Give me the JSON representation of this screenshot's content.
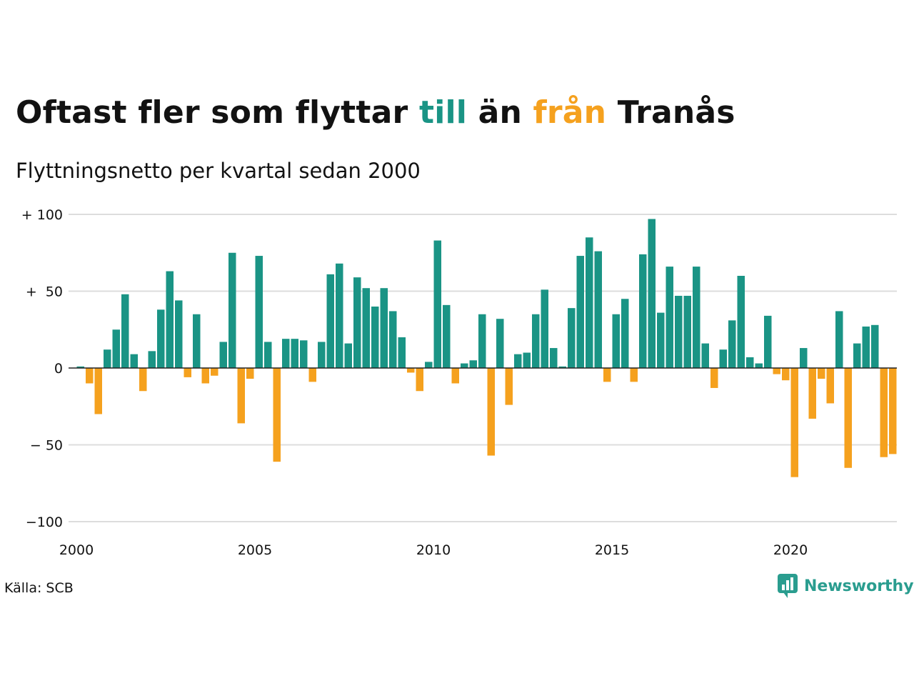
{
  "title": {
    "part1": "Oftast fler som flyttar ",
    "highlight1": "till",
    "part2": " än ",
    "highlight2": "från",
    "part3": " Tranås"
  },
  "subtitle": "Flyttningsnetto per kvartal sedan 2000",
  "source": "Källa: SCB",
  "brand": "Newsworthy",
  "colors": {
    "positive": "#1a9485",
    "negative": "#f5a11e",
    "grid": "#dddddd",
    "text": "#121212"
  },
  "chart_data": {
    "type": "bar",
    "start_year": 2000,
    "period": "quarter",
    "ylim": [
      -100,
      100
    ],
    "yticks": [
      {
        "value": 100,
        "label": "+ 100"
      },
      {
        "value": 50,
        "label": "+  50"
      },
      {
        "value": 0,
        "label": "0"
      },
      {
        "value": -50,
        "label": "− 50"
      },
      {
        "value": -100,
        "label": "−100"
      }
    ],
    "xticks": [
      "2000",
      "2005",
      "2010",
      "2015",
      "2020"
    ],
    "values": [
      1,
      -10,
      -30,
      12,
      25,
      48,
      9,
      -15,
      11,
      38,
      63,
      44,
      -6,
      35,
      -10,
      -5,
      17,
      75,
      -36,
      -7,
      73,
      17,
      -61,
      19,
      19,
      18,
      -9,
      17,
      61,
      68,
      16,
      59,
      52,
      40,
      52,
      37,
      20,
      -3,
      -15,
      4,
      83,
      41,
      -10,
      3,
      5,
      35,
      -57,
      32,
      -24,
      9,
      10,
      35,
      51,
      13,
      1,
      39,
      73,
      85,
      76,
      -9,
      35,
      45,
      -9,
      74,
      97,
      36,
      66,
      47,
      47,
      66,
      16,
      -13,
      12,
      31,
      60,
      7,
      3,
      34,
      -4,
      -8,
      -71,
      13,
      -33,
      -7,
      -23,
      37,
      -65,
      16,
      27,
      28,
      -58,
      -56
    ]
  }
}
